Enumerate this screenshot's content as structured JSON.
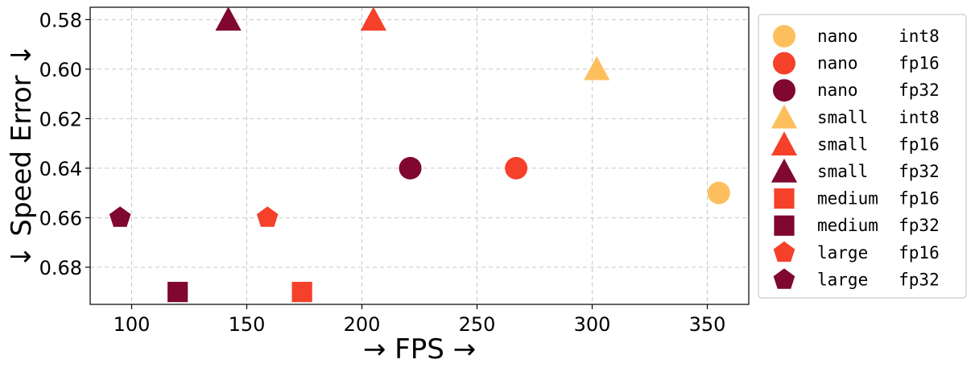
{
  "chart_data": {
    "type": "scatter",
    "title": "",
    "xlabel": "→ FPS →",
    "ylabel": "↓ Speed Error ↓",
    "xlim": [
      82,
      368
    ],
    "ylim": [
      0.575,
      0.695
    ],
    "y_inverted": true,
    "x_ticks": [
      100,
      150,
      200,
      250,
      300,
      350
    ],
    "y_ticks": [
      0.58,
      0.6,
      0.62,
      0.64,
      0.66,
      0.68
    ],
    "x_tick_labels": [
      "100",
      "150",
      "200",
      "250",
      "300",
      "350"
    ],
    "y_tick_labels": [
      "0.58",
      "0.60",
      "0.62",
      "0.64",
      "0.66",
      "0.68"
    ],
    "grid": true,
    "legend_position": "outside right",
    "series": [
      {
        "name": "nano    int8",
        "marker": "circle",
        "color": "#FDBF5E",
        "points": [
          {
            "x": 355,
            "y": 0.65
          }
        ]
      },
      {
        "name": "nano    fp16",
        "marker": "circle",
        "color": "#F5412A",
        "points": [
          {
            "x": 267,
            "y": 0.64
          }
        ]
      },
      {
        "name": "nano    fp32",
        "marker": "circle",
        "color": "#7F0730",
        "points": [
          {
            "x": 221,
            "y": 0.64
          }
        ]
      },
      {
        "name": "small   int8",
        "marker": "triangle",
        "color": "#FDBF5E",
        "points": [
          {
            "x": 302,
            "y": 0.6
          }
        ]
      },
      {
        "name": "small   fp16",
        "marker": "triangle",
        "color": "#F5412A",
        "points": [
          {
            "x": 205,
            "y": 0.58
          }
        ]
      },
      {
        "name": "small   fp32",
        "marker": "triangle",
        "color": "#7F0730",
        "points": [
          {
            "x": 142,
            "y": 0.58
          }
        ]
      },
      {
        "name": "medium  fp16",
        "marker": "square",
        "color": "#F5412A",
        "points": [
          {
            "x": 174,
            "y": 0.69
          }
        ]
      },
      {
        "name": "medium  fp32",
        "marker": "square",
        "color": "#7F0730",
        "points": [
          {
            "x": 120,
            "y": 0.69
          }
        ]
      },
      {
        "name": "large   fp16",
        "marker": "pentagon",
        "color": "#F5412A",
        "points": [
          {
            "x": 159,
            "y": 0.66
          }
        ]
      },
      {
        "name": "large   fp32",
        "marker": "pentagon",
        "color": "#7F0730",
        "points": [
          {
            "x": 95,
            "y": 0.66
          }
        ]
      }
    ]
  }
}
